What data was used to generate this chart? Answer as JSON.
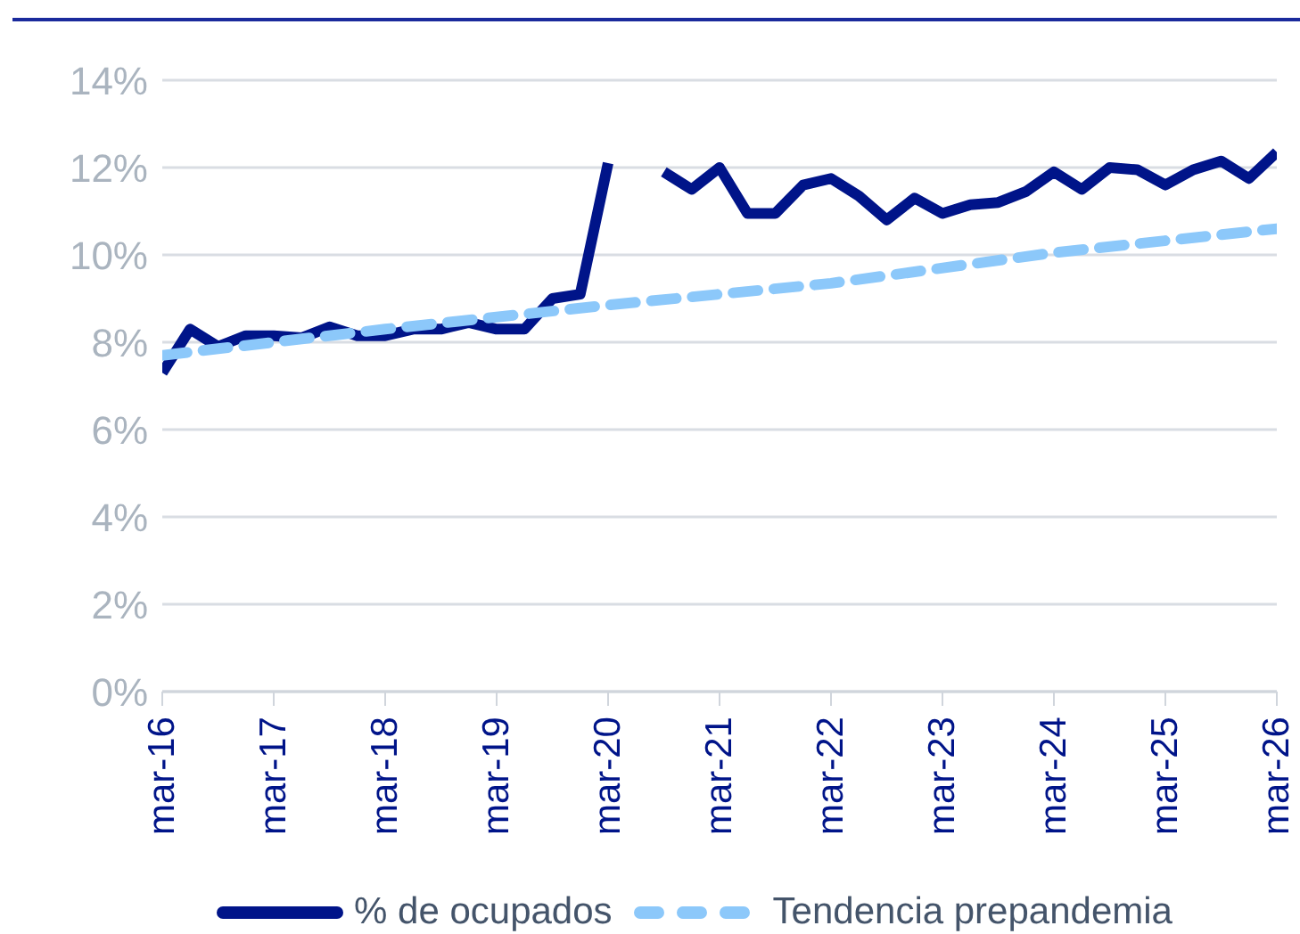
{
  "chart_data": {
    "type": "line",
    "categories": [
      "mar-16",
      null,
      null,
      null,
      "mar-17",
      null,
      null,
      null,
      "mar-18",
      null,
      null,
      null,
      "mar-19",
      null,
      null,
      null,
      "mar-20",
      null,
      null,
      null,
      "mar-21",
      null,
      null,
      null,
      "mar-22",
      null,
      null,
      null,
      "mar-23",
      null,
      null,
      null,
      "mar-24",
      null,
      null,
      null,
      "mar-25",
      null,
      null,
      null,
      "mar-26"
    ],
    "series": [
      {
        "name": "% de ocupados",
        "color": "#001489",
        "line_style": "solid",
        "values": [
          7.3,
          8.3,
          7.9,
          8.15,
          8.15,
          8.1,
          8.35,
          8.15,
          8.15,
          8.3,
          8.3,
          8.45,
          8.3,
          8.3,
          9.0,
          9.1,
          12.1,
          null,
          11.9,
          11.5,
          12.0,
          10.95,
          10.95,
          11.6,
          11.75,
          11.35,
          10.8,
          11.3,
          10.95,
          11.15,
          11.2,
          11.45,
          11.9,
          11.5,
          12.0,
          11.95,
          11.6,
          11.95,
          12.15,
          11.75,
          12.35
        ]
      },
      {
        "name": "Tendencia prepandemia",
        "color": "#8cc8fa",
        "line_style": "dashed",
        "values": [
          7.7,
          null,
          null,
          null,
          null,
          null,
          null,
          null,
          8.3,
          null,
          null,
          null,
          null,
          null,
          null,
          null,
          8.85,
          null,
          null,
          null,
          null,
          null,
          null,
          null,
          9.35,
          null,
          null,
          null,
          null,
          null,
          null,
          null,
          10.05,
          null,
          null,
          null,
          null,
          null,
          null,
          null,
          10.6
        ]
      }
    ],
    "ylim": [
      0,
      14
    ],
    "yticks": [
      {
        "value": 0,
        "label": "0%"
      },
      {
        "value": 2,
        "label": "2%"
      },
      {
        "value": 4,
        "label": "4%"
      },
      {
        "value": 6,
        "label": "6%"
      },
      {
        "value": 8,
        "label": "8%"
      },
      {
        "value": 10,
        "label": "10%"
      },
      {
        "value": 12,
        "label": "12%"
      },
      {
        "value": 14,
        "label": "14%"
      }
    ],
    "grid": "y",
    "legend": "bottom",
    "marker": "none"
  }
}
